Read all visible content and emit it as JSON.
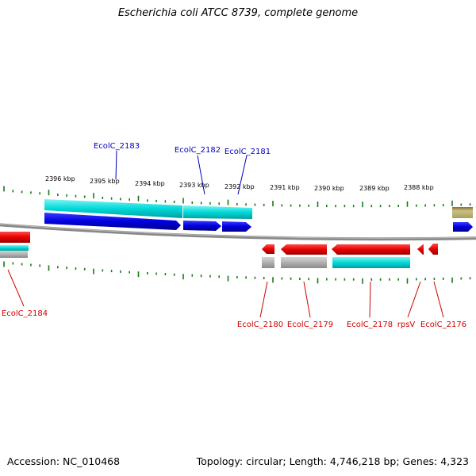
{
  "title": "Escherichia coli ATCC 8739, complete genome",
  "footer": {
    "accession": "Accession: NC_010468",
    "summary": "Topology: circular; Length: 4,746,218 bp; Genes: 4,323"
  },
  "colors": {
    "backbone": "#888888",
    "tick": "#1a7a1a",
    "cds_plus": "#0000e6",
    "cds_minus": "#e60000",
    "gene_cyan": "#00d8d8",
    "gene_gray": "#b0b0b0",
    "gene_olive": "#b5b070",
    "label_plus": "#0000c0",
    "label_minus": "#d00000"
  },
  "scale_labels": [
    "2396 kbp",
    "2395 kbp",
    "2394 kbp",
    "2393 kbp",
    "2392 kbp",
    "2391 kbp",
    "2390 kbp",
    "2389 kbp",
    "2388 kbp"
  ],
  "gene_labels_top": [
    "EcolC_2183",
    "EcolC_2182",
    "EcolC_2181"
  ],
  "gene_labels_bottom": [
    "EcolC_2184",
    "EcolC_2180",
    "EcolC_2179",
    "EcolC_2178",
    "rpsV",
    "EcolC_2176"
  ]
}
